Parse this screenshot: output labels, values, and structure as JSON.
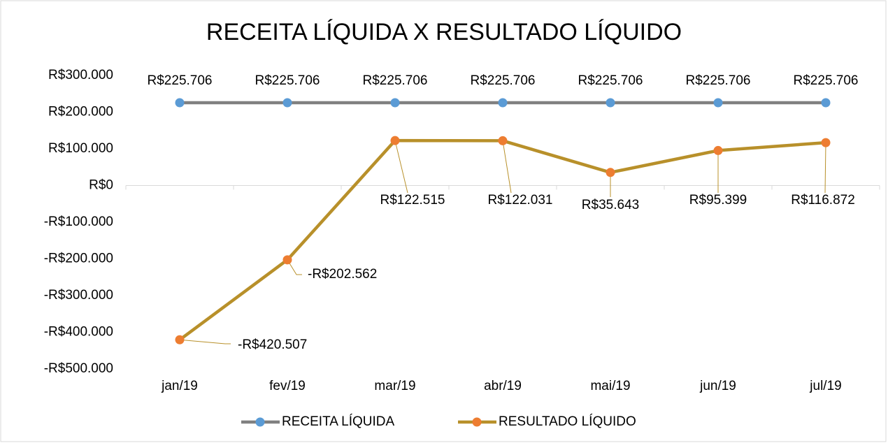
{
  "chart_data": {
    "type": "line",
    "title": "RECEITA LÍQUIDA X RESULTADO LÍQUIDO",
    "categories": [
      "jan/19",
      "fev/19",
      "mar/19",
      "abr/19",
      "mai/19",
      "jun/19",
      "jul/19"
    ],
    "series": [
      {
        "name": "RECEITA LÍQUIDA",
        "color": "#808080",
        "marker_color": "#5b9bd5",
        "values": [
          225706,
          225706,
          225706,
          225706,
          225706,
          225706,
          225706
        ],
        "value_labels": [
          "R$225.706",
          "R$225.706",
          "R$225.706",
          "R$225.706",
          "R$225.706",
          "R$225.706",
          "R$225.706"
        ]
      },
      {
        "name": "RESULTADO LÍQUIDO",
        "color": "#b8902a",
        "marker_color": "#ed7d31",
        "values": [
          -420507,
          -202562,
          122515,
          122031,
          35643,
          95399,
          116872
        ],
        "value_labels": [
          "-R$420.507",
          "-R$202.562",
          "R$122.515",
          "R$122.031",
          "R$35.643",
          "R$95.399",
          "R$116.872"
        ]
      }
    ],
    "ylim": [
      -500000,
      300000
    ],
    "yticks": [
      {
        "value": -500000,
        "label": "-R$500.000"
      },
      {
        "value": -400000,
        "label": "-R$400.000"
      },
      {
        "value": -300000,
        "label": "-R$300.000"
      },
      {
        "value": -200000,
        "label": "-R$200.000"
      },
      {
        "value": -100000,
        "label": "-R$100.000"
      },
      {
        "value": 0,
        "label": "R$0"
      },
      {
        "value": 100000,
        "label": "R$100.000"
      },
      {
        "value": 200000,
        "label": "R$200.000"
      },
      {
        "value": 300000,
        "label": "R$300.000"
      }
    ],
    "grid": false,
    "legend": "bottom"
  }
}
